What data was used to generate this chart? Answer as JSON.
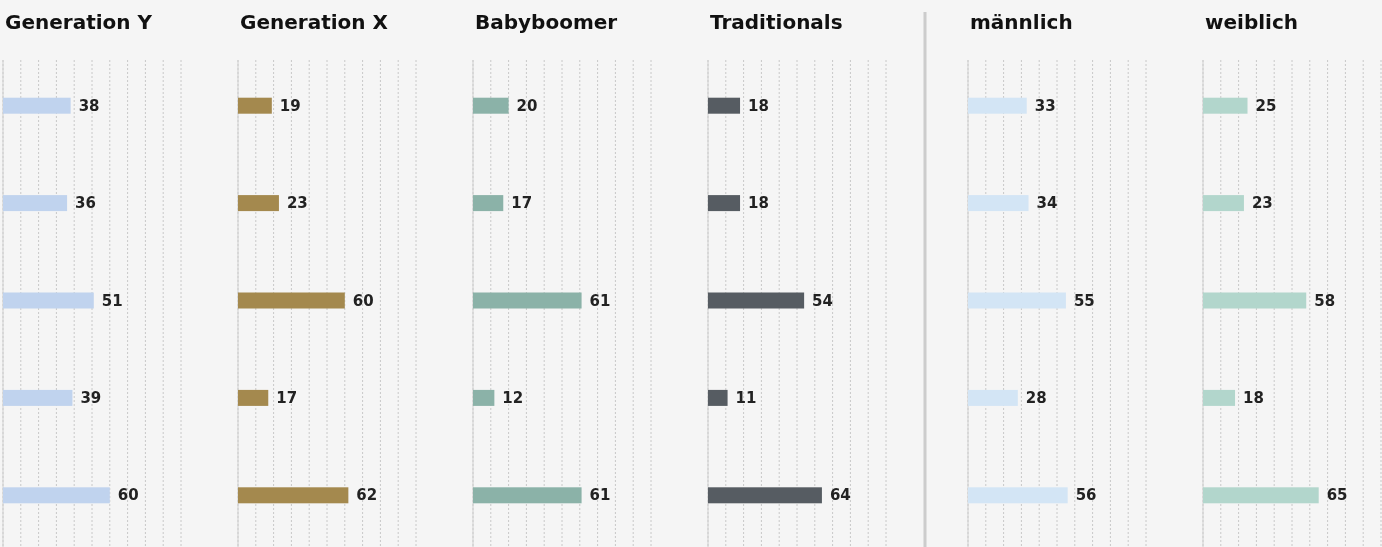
{
  "chart_data": [
    {
      "type": "bar",
      "orientation": "horizontal",
      "title": "Generation Y",
      "categories": [
        null,
        null,
        null,
        null,
        null
      ],
      "values": [
        38,
        36,
        51,
        39,
        60
      ],
      "color": "#c0d3ee",
      "xlim": [
        0,
        100
      ],
      "xticks": [
        {
          "value": 0,
          "label": null
        },
        {
          "value": 10,
          "label": null
        },
        {
          "value": 20,
          "label": null
        },
        {
          "value": 30,
          "label": null
        },
        {
          "value": 40,
          "label": null
        },
        {
          "value": 50,
          "label": null
        },
        {
          "value": 60,
          "label": null
        },
        {
          "value": 70,
          "label": null
        },
        {
          "value": 80,
          "label": null
        },
        {
          "value": 90,
          "label": null
        },
        {
          "value": 100,
          "label": null
        }
      ],
      "grid": "x",
      "data_labels": true
    },
    {
      "type": "bar",
      "orientation": "horizontal",
      "title": "Generation X",
      "categories": [
        null,
        null,
        null,
        null,
        null
      ],
      "values": [
        19,
        23,
        60,
        17,
        62
      ],
      "color": "#a4894e",
      "xlim": [
        0,
        100
      ],
      "xticks": [
        {
          "value": 0,
          "label": null
        },
        {
          "value": 10,
          "label": null
        },
        {
          "value": 20,
          "label": null
        },
        {
          "value": 30,
          "label": null
        },
        {
          "value": 40,
          "label": null
        },
        {
          "value": 50,
          "label": null
        },
        {
          "value": 60,
          "label": null
        },
        {
          "value": 70,
          "label": null
        },
        {
          "value": 80,
          "label": null
        },
        {
          "value": 90,
          "label": null
        },
        {
          "value": 100,
          "label": null
        }
      ],
      "grid": "x",
      "data_labels": true
    },
    {
      "type": "bar",
      "orientation": "horizontal",
      "title": "Babyboomer",
      "categories": [
        null,
        null,
        null,
        null,
        null
      ],
      "values": [
        20,
        17,
        61,
        12,
        61
      ],
      "color": "#8bb2a8",
      "xlim": [
        0,
        100
      ],
      "xticks": [
        {
          "value": 0,
          "label": null
        },
        {
          "value": 10,
          "label": null
        },
        {
          "value": 20,
          "label": null
        },
        {
          "value": 30,
          "label": null
        },
        {
          "value": 40,
          "label": null
        },
        {
          "value": 50,
          "label": null
        },
        {
          "value": 60,
          "label": null
        },
        {
          "value": 70,
          "label": null
        },
        {
          "value": 80,
          "label": null
        },
        {
          "value": 90,
          "label": null
        },
        {
          "value": 100,
          "label": null
        }
      ],
      "grid": "x",
      "data_labels": true
    },
    {
      "type": "bar",
      "orientation": "horizontal",
      "title": "Traditionals",
      "categories": [
        null,
        null,
        null,
        null,
        null
      ],
      "values": [
        18,
        18,
        54,
        11,
        64
      ],
      "color": "#565c62",
      "xlim": [
        0,
        100
      ],
      "xticks": [
        {
          "value": 0,
          "label": null
        },
        {
          "value": 10,
          "label": null
        },
        {
          "value": 20,
          "label": null
        },
        {
          "value": 30,
          "label": null
        },
        {
          "value": 40,
          "label": null
        },
        {
          "value": 50,
          "label": null
        },
        {
          "value": 60,
          "label": null
        },
        {
          "value": 70,
          "label": null
        },
        {
          "value": 80,
          "label": null
        },
        {
          "value": 90,
          "label": null
        },
        {
          "value": 100,
          "label": null
        }
      ],
      "grid": "x",
      "data_labels": true
    },
    {
      "type": "bar",
      "orientation": "horizontal",
      "title": "männlich",
      "categories": [
        null,
        null,
        null,
        null,
        null
      ],
      "values": [
        33,
        34,
        55,
        28,
        56
      ],
      "color": "#d3e5f5",
      "xlim": [
        0,
        100
      ],
      "xticks": [
        {
          "value": 0,
          "label": null
        },
        {
          "value": 10,
          "label": null
        },
        {
          "value": 20,
          "label": null
        },
        {
          "value": 30,
          "label": null
        },
        {
          "value": 40,
          "label": null
        },
        {
          "value": 50,
          "label": null
        },
        {
          "value": 60,
          "label": null
        },
        {
          "value": 70,
          "label": null
        },
        {
          "value": 80,
          "label": null
        },
        {
          "value": 90,
          "label": null
        },
        {
          "value": 100,
          "label": null
        }
      ],
      "grid": "x",
      "data_labels": true
    },
    {
      "type": "bar",
      "orientation": "horizontal",
      "title": "weiblich",
      "categories": [
        null,
        null,
        null,
        null,
        null
      ],
      "values": [
        25,
        23,
        58,
        18,
        65
      ],
      "color": "#b2d6cc",
      "xlim": [
        0,
        100
      ],
      "xticks": [
        {
          "value": 0,
          "label": null
        },
        {
          "value": 10,
          "label": null
        },
        {
          "value": 20,
          "label": null
        },
        {
          "value": 30,
          "label": null
        },
        {
          "value": 40,
          "label": null
        },
        {
          "value": 50,
          "label": null
        },
        {
          "value": 60,
          "label": null
        },
        {
          "value": 70,
          "label": null
        },
        {
          "value": 80,
          "label": null
        },
        {
          "value": 90,
          "label": null
        },
        {
          "value": 100,
          "label": null
        }
      ],
      "grid": "x",
      "data_labels": true
    }
  ]
}
